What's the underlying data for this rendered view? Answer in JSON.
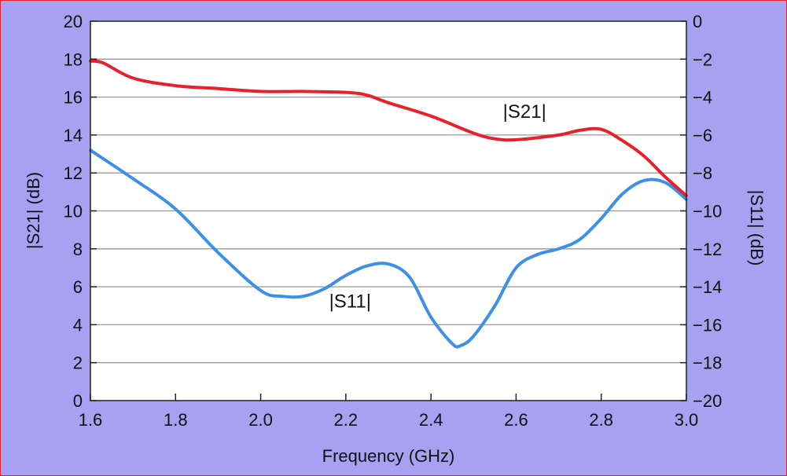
{
  "chart_data": {
    "type": "line",
    "xlabel": "Frequency (GHz)",
    "ylabel_left": "|S21| (dB)",
    "ylabel_right": "|S11| (dB)",
    "xlim": [
      1.6,
      3.0
    ],
    "ylim_left": [
      0,
      20
    ],
    "ylim_right": [
      -20,
      0
    ],
    "x_ticks": [
      "1.6",
      "1.8",
      "2.0",
      "2.2",
      "2.4",
      "2.6",
      "2.8",
      "3.0"
    ],
    "y_ticks_left": [
      "0",
      "2",
      "4",
      "6",
      "8",
      "10",
      "12",
      "14",
      "16",
      "18",
      "20"
    ],
    "y_ticks_right": [
      "−20",
      "−18",
      "−16",
      "−14",
      "−12",
      "−10",
      "−8",
      "−6",
      "−4",
      "−2",
      "0"
    ],
    "grid": true,
    "series": [
      {
        "name": "|S21|",
        "axis": "left",
        "color": "#e8202a",
        "x": [
          1.6,
          1.63,
          1.7,
          1.8,
          1.9,
          2.0,
          2.1,
          2.2,
          2.25,
          2.3,
          2.4,
          2.5,
          2.55,
          2.6,
          2.7,
          2.75,
          2.8,
          2.85,
          2.9,
          2.95,
          3.0
        ],
        "y": [
          17.9,
          17.8,
          17.0,
          16.6,
          16.45,
          16.3,
          16.3,
          16.25,
          16.1,
          15.7,
          15.0,
          14.1,
          13.8,
          13.75,
          14.0,
          14.25,
          14.3,
          13.7,
          12.9,
          11.8,
          10.8
        ]
      },
      {
        "name": "|S11|",
        "axis": "right",
        "color": "#3d8fe8",
        "x": [
          1.6,
          1.7,
          1.8,
          1.9,
          2.0,
          2.05,
          2.1,
          2.15,
          2.2,
          2.25,
          2.3,
          2.35,
          2.4,
          2.45,
          2.47,
          2.5,
          2.55,
          2.6,
          2.65,
          2.7,
          2.75,
          2.8,
          2.85,
          2.9,
          2.95,
          3.0
        ],
        "y": [
          -6.8,
          -8.3,
          -9.9,
          -12.2,
          -14.2,
          -14.5,
          -14.5,
          -14.1,
          -13.4,
          -12.9,
          -12.8,
          -13.5,
          -15.6,
          -17.0,
          -17.1,
          -16.6,
          -15.0,
          -13.0,
          -12.3,
          -12.0,
          -11.5,
          -10.4,
          -9.1,
          -8.4,
          -8.5,
          -9.4
        ]
      }
    ],
    "annotations": [
      {
        "text": "|S21|",
        "x": 2.62,
        "y_left": 14.9
      },
      {
        "text": "|S11|",
        "x": 2.21,
        "y_right": -15.1
      }
    ]
  }
}
